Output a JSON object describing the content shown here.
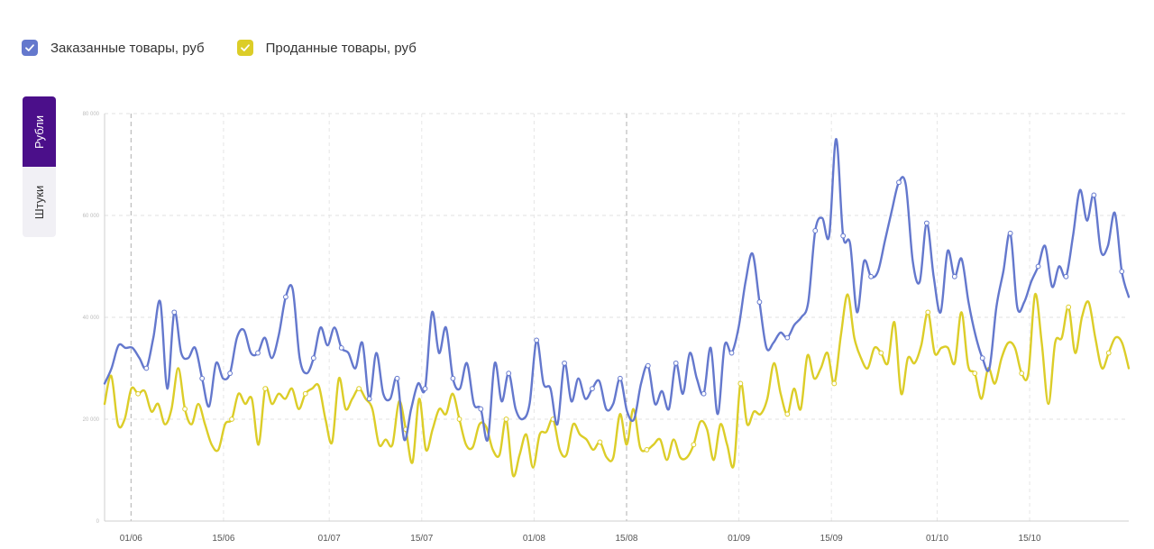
{
  "legend": {
    "items": [
      {
        "label": "Заказанные товары, руб",
        "color": "#6478cd"
      },
      {
        "label": "Проданные товары, руб",
        "color": "#dccd28"
      }
    ]
  },
  "unit_toggle": {
    "options": [
      {
        "label": "Рубли",
        "active": true
      },
      {
        "label": "Штуки",
        "active": false
      }
    ],
    "active_color": "#4b0f8a"
  },
  "chart_data": {
    "type": "line",
    "x_ticks": [
      {
        "label": "01/06",
        "day": 4
      },
      {
        "label": "15/06",
        "day": 18
      },
      {
        "label": "01/07",
        "day": 34
      },
      {
        "label": "15/07",
        "day": 48
      },
      {
        "label": "01/08",
        "day": 65
      },
      {
        "label": "15/08",
        "day": 79
      },
      {
        "label": "01/09",
        "day": 96
      },
      {
        "label": "15/09",
        "day": 110
      },
      {
        "label": "01/10",
        "day": 126
      },
      {
        "label": "15/10",
        "day": 140
      }
    ],
    "x_range": [
      0,
      155
    ],
    "y_ticks": [
      {
        "label": "0",
        "value": 0
      },
      {
        "label": "20 000",
        "value": 20000
      },
      {
        "label": "40 000",
        "value": 40000
      },
      {
        "label": "60 000",
        "value": 60000
      },
      {
        "label": "80 000",
        "value": 80000
      }
    ],
    "ylim": [
      0,
      80000
    ],
    "grid": true,
    "series": [
      {
        "name": "Заказанные товары, руб",
        "color": "#6478cd",
        "values": [
          27000,
          30000,
          34500,
          34000,
          34000,
          32000,
          30000,
          36000,
          43000,
          26000,
          41000,
          33000,
          32000,
          34000,
          28000,
          22500,
          31000,
          28000,
          29000,
          36000,
          37500,
          33000,
          33000,
          36000,
          32000,
          36500,
          44000,
          45500,
          32000,
          29000,
          32000,
          38000,
          34500,
          38000,
          34000,
          33000,
          30000,
          35000,
          24000,
          33000,
          25000,
          24000,
          28000,
          16000,
          22000,
          27000,
          26000,
          41000,
          33000,
          38000,
          28000,
          26000,
          31000,
          23000,
          22000,
          16000,
          31000,
          23500,
          29000,
          22000,
          20000,
          23000,
          35500,
          27000,
          26000,
          19000,
          31000,
          23500,
          28000,
          24000,
          26000,
          27500,
          22000,
          23000,
          28000,
          21500,
          20000,
          27000,
          30500,
          23000,
          25500,
          22000,
          31000,
          25000,
          33000,
          28000,
          25000,
          34000,
          21000,
          34500,
          33000,
          38000,
          47000,
          52500,
          43000,
          34000,
          35000,
          37000,
          36000,
          38500,
          40000,
          43000,
          57000,
          59500,
          56000,
          75000,
          56000,
          54500,
          41000,
          51000,
          48000,
          49000,
          55000,
          61000,
          66500,
          66000,
          51000,
          47000,
          58500,
          48000,
          41000,
          53000,
          48000,
          51500,
          43000,
          36500,
          32000,
          30000,
          42000,
          49000,
          56500,
          42000,
          43000,
          47000,
          50000,
          54000,
          46000,
          50000,
          48000,
          56000,
          65000,
          59000,
          64000,
          53000,
          54000,
          60500,
          49000,
          44000
        ],
        "markers": [
          6,
          10,
          14,
          18,
          22,
          26,
          30,
          34,
          38,
          42,
          46,
          50,
          54,
          58,
          62,
          66,
          70,
          74,
          78,
          82,
          86,
          90,
          94,
          98,
          102,
          106,
          110,
          114,
          118,
          122,
          126,
          130,
          134,
          138,
          142,
          146,
          150
        ]
      },
      {
        "name": "Проданные товары, руб",
        "color": "#dccd28",
        "values": [
          23000,
          28500,
          19000,
          20000,
          26000,
          25000,
          25500,
          21500,
          23000,
          19000,
          22000,
          30000,
          22000,
          19000,
          23000,
          19000,
          15000,
          14000,
          19000,
          20000,
          25000,
          23000,
          24000,
          15000,
          26000,
          23000,
          25000,
          24000,
          26000,
          22000,
          25000,
          26000,
          26500,
          20000,
          15500,
          28000,
          22000,
          24000,
          26000,
          24000,
          22000,
          15000,
          16000,
          15000,
          23500,
          18000,
          11500,
          24000,
          14000,
          18000,
          22000,
          21000,
          25000,
          20000,
          15000,
          14500,
          19000,
          18500,
          14000,
          13000,
          20000,
          9000,
          13000,
          17000,
          10500,
          17000,
          17500,
          20000,
          14000,
          13000,
          19000,
          17000,
          16000,
          14000,
          15500,
          12500,
          12500,
          21000,
          15000,
          22000,
          14500,
          14000,
          15000,
          16000,
          12000,
          16000,
          12500,
          12500,
          15000,
          19500,
          18000,
          12000,
          19000,
          15000,
          11000,
          27000,
          19000,
          21500,
          21000,
          24000,
          31000,
          25000,
          21000,
          26000,
          22000,
          32500,
          28000,
          30000,
          33000,
          27000,
          36500,
          44500,
          36000,
          32000,
          30000,
          34000,
          33000,
          31000,
          39000,
          25000,
          32000,
          31000,
          34500,
          41000,
          33000,
          34000,
          34000,
          31000,
          41000,
          30500,
          29000,
          24000,
          30000,
          27000,
          32000,
          35000,
          34000,
          29000,
          29000,
          44500,
          35000,
          23000,
          35000,
          36000,
          42000,
          33000,
          40000,
          43000,
          36000,
          30000,
          33000,
          36000,
          35000,
          30000
        ],
        "markers": [
          5,
          12,
          19,
          24,
          30,
          38,
          45,
          53,
          60,
          67,
          74,
          81,
          88,
          95,
          102,
          109,
          116,
          123,
          130,
          137,
          144,
          150
        ]
      }
    ]
  }
}
